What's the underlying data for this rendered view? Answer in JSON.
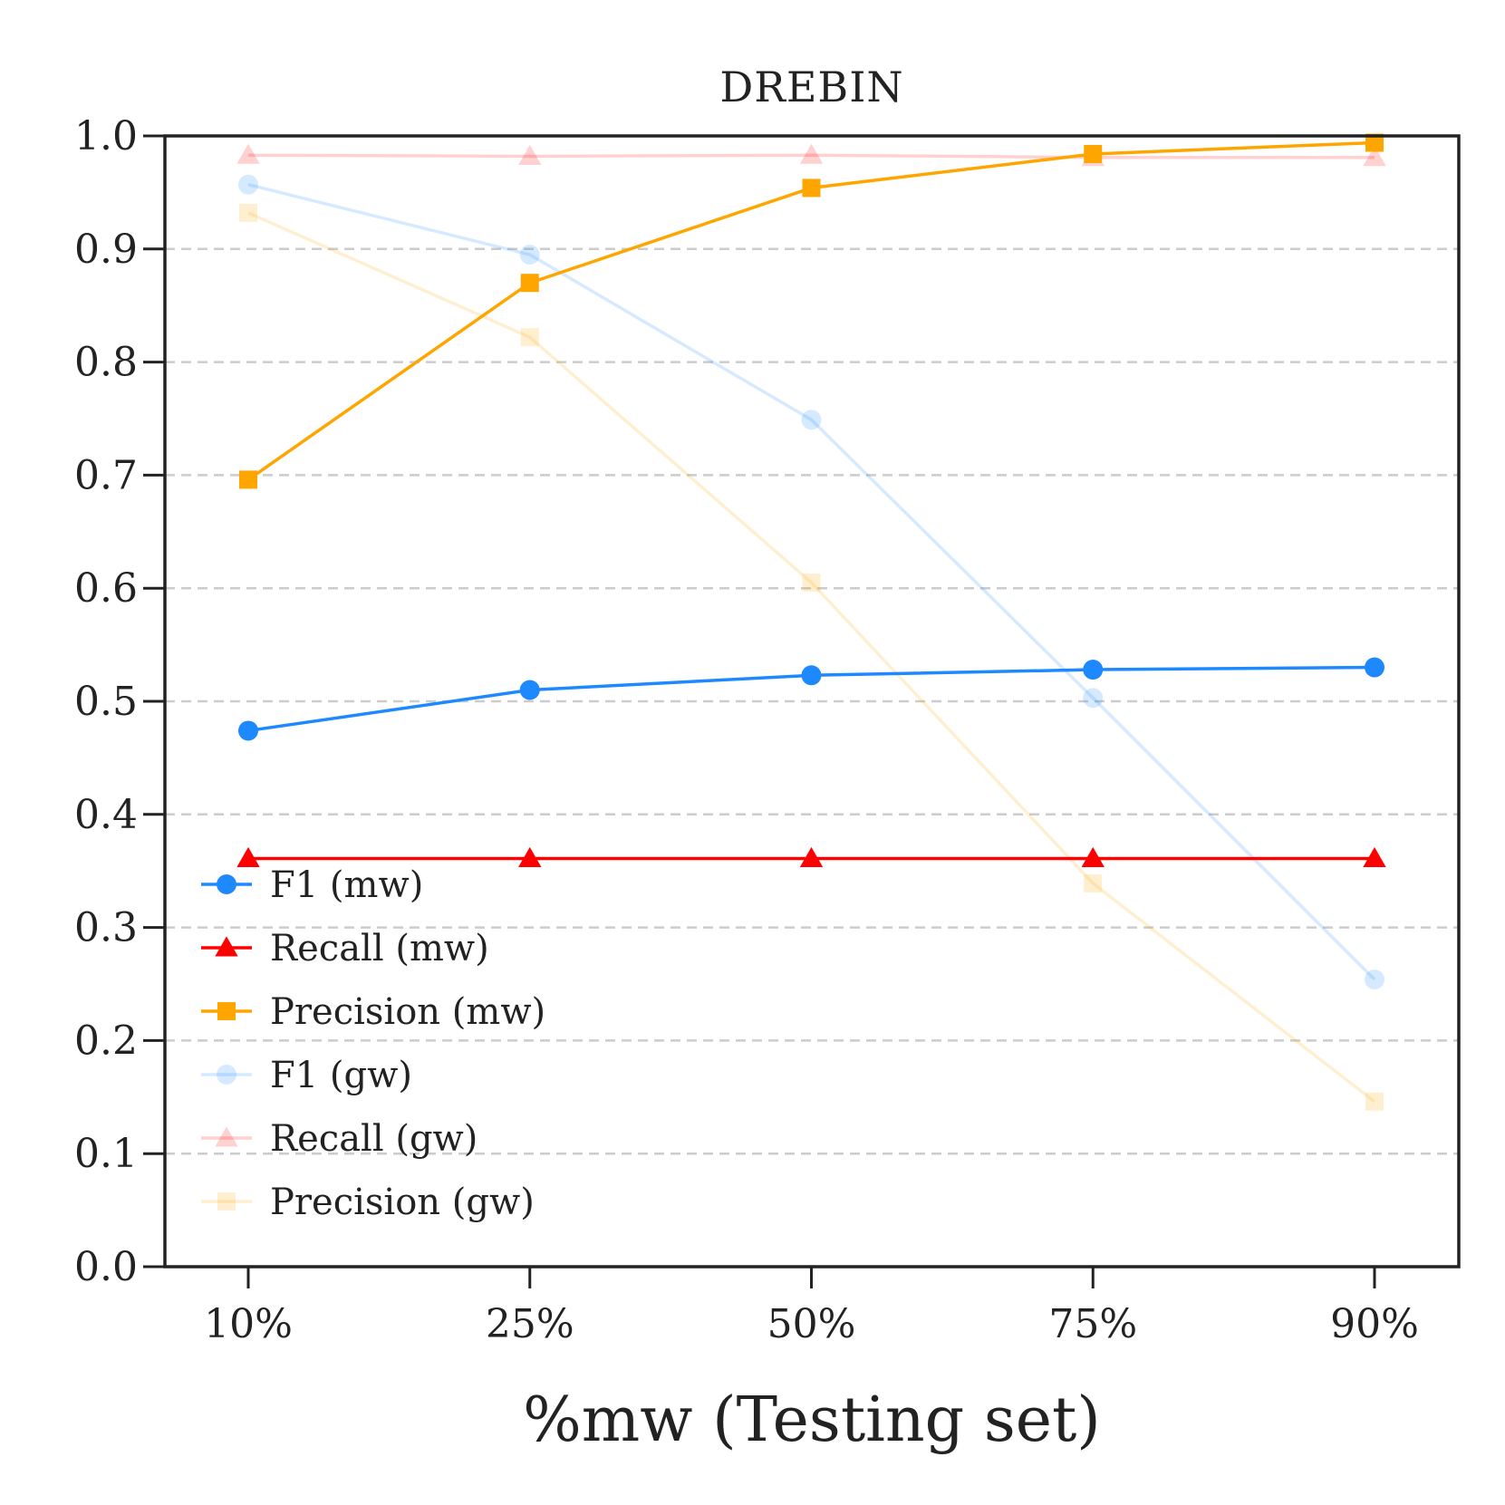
{
  "chart_data": {
    "type": "line",
    "title": "DREBIN",
    "xlabel": "%mw (Testing set)",
    "ylabel": "",
    "categories": [
      "10%",
      "25%",
      "50%",
      "75%",
      "90%"
    ],
    "ylim": [
      0.0,
      1.0
    ],
    "yticks": [
      "0.0",
      "0.1",
      "0.2",
      "0.3",
      "0.4",
      "0.5",
      "0.6",
      "0.7",
      "0.8",
      "0.9",
      "1.0"
    ],
    "grid": "horizontal dashed",
    "legend_position": "lower-left",
    "series": [
      {
        "name": "F1 (mw)",
        "color": "#1e88ff",
        "marker": "circle",
        "opacity": 1.0,
        "values": [
          0.474,
          0.51,
          0.523,
          0.528,
          0.53
        ]
      },
      {
        "name": "Recall (mw)",
        "color": "#ff0000",
        "marker": "triangle",
        "opacity": 1.0,
        "values": [
          0.361,
          0.361,
          0.361,
          0.361,
          0.361
        ]
      },
      {
        "name": "Precision (mw)",
        "color": "#ffa500",
        "marker": "square",
        "opacity": 1.0,
        "values": [
          0.696,
          0.87,
          0.954,
          0.984,
          0.994
        ]
      },
      {
        "name": "F1 (gw)",
        "color": "#1e88ff",
        "marker": "circle",
        "opacity": 0.18,
        "values": [
          0.957,
          0.895,
          0.749,
          0.503,
          0.254
        ]
      },
      {
        "name": "Recall (gw)",
        "color": "#ff0000",
        "marker": "triangle",
        "opacity": 0.18,
        "values": [
          0.983,
          0.982,
          0.983,
          0.981,
          0.981
        ]
      },
      {
        "name": "Precision (gw)",
        "color": "#ffa500",
        "marker": "square",
        "opacity": 0.18,
        "values": [
          0.932,
          0.822,
          0.605,
          0.339,
          0.146
        ]
      }
    ]
  }
}
